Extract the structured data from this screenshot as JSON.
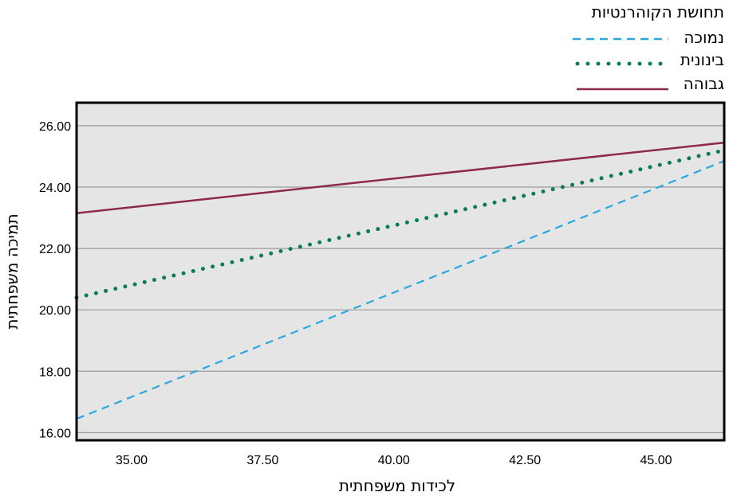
{
  "chart_data": {
    "type": "line",
    "xlabel": "לכידות משפחתית",
    "ylabel": "תמיכה משפחתית",
    "xlim": [
      33.95,
      46.3
    ],
    "ylim": [
      15.75,
      26.75
    ],
    "x_ticks": [
      "35.00",
      "37.50",
      "40.00",
      "42.50",
      "45.00"
    ],
    "x_tick_values": [
      35,
      37.5,
      40,
      42.5,
      45
    ],
    "y_ticks": [
      "16.00",
      "18.00",
      "20.00",
      "22.00",
      "24.00",
      "26.00"
    ],
    "y_tick_values": [
      16,
      18,
      20,
      22,
      24,
      26
    ],
    "grid": "horizontal",
    "plot_background": "#e5e5e5",
    "legend": {
      "title": "תחושת הקוהרנטיות",
      "placement": "top-right"
    },
    "series": [
      {
        "name": "נמוכה",
        "color": "#29a8e0",
        "style": "dashed",
        "x": [
          33.95,
          46.3
        ],
        "y": [
          16.45,
          24.85
        ]
      },
      {
        "name": "בינונית",
        "color": "#0a7d4f",
        "style": "dotted",
        "x": [
          33.95,
          46.3
        ],
        "y": [
          20.4,
          25.2
        ]
      },
      {
        "name": "גבוהה",
        "color": "#8c2a4c",
        "style": "solid",
        "x": [
          33.95,
          46.3
        ],
        "y": [
          23.15,
          25.45
        ]
      }
    ]
  }
}
